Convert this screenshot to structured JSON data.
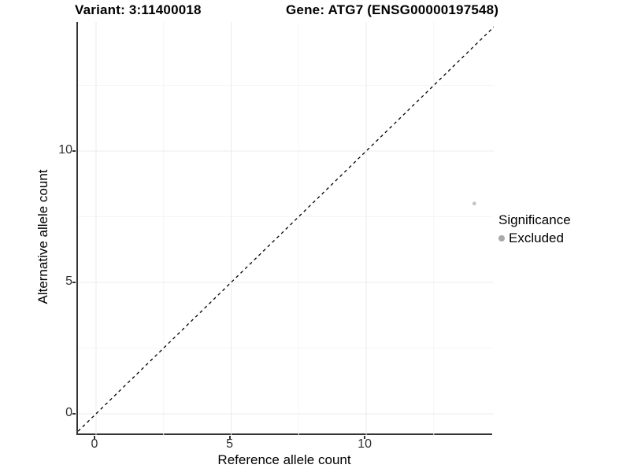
{
  "chart_data": {
    "type": "scatter",
    "titles": {
      "variant": "Variant: 3:11400018",
      "gene": "Gene: ATG7 (ENSG00000197548)"
    },
    "xlabel": "Reference allele count",
    "ylabel": "Alternative allele count",
    "xlim": [
      -0.67,
      14.72
    ],
    "ylim": [
      -0.81,
      14.91
    ],
    "xticks": [
      0,
      5,
      10
    ],
    "yticks": [
      0,
      5,
      10
    ],
    "grid_minor_x": [
      2.5,
      7.5,
      12.5
    ],
    "grid_minor_y": [
      2.5,
      7.5,
      12.5
    ],
    "grid": true,
    "points": [
      {
        "x": 14,
        "y": 8,
        "significance": "Excluded",
        "color": "#c4c4c4",
        "radius": 2.4
      }
    ],
    "identity_line": {
      "type": "dashed",
      "slope": 1,
      "intercept": 0,
      "color": "#000000"
    },
    "legend": {
      "title": "Significance",
      "position": "right",
      "items": [
        {
          "label": "Excluded",
          "color": "#a9a9a9"
        }
      ]
    },
    "colors": {
      "axis_line": "#333333",
      "grid_major": "#ebebeb",
      "grid_minor": "#f5f5f5",
      "background": "#ffffff"
    }
  }
}
